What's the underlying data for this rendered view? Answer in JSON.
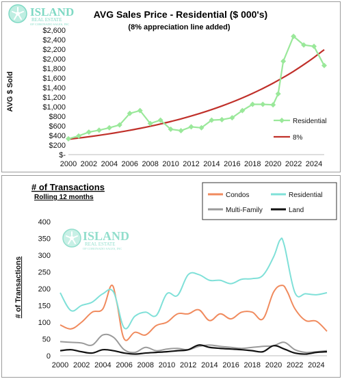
{
  "brand": {
    "name": "ISLAND",
    "subtitle": "REAL ESTATE",
    "tagline": "OF CORONADO SALES, INC",
    "color": "#7fd9c4"
  },
  "chart_data": [
    {
      "type": "line",
      "title": "AVG Sales Price -  Residential ($ 000's)",
      "subtitle": "(8% appreciation line added)",
      "ylabel": "AVG $ Sold",
      "xlabel": "",
      "xlim": [
        2000,
        2025
      ],
      "ylim": [
        0,
        2600
      ],
      "xticks": [
        "2000",
        "2002",
        "2004",
        "2006",
        "2008",
        "2010",
        "2012",
        "2014",
        "2016",
        "2018",
        "2020",
        "2022",
        "2024"
      ],
      "yticks": [
        "$-",
        "$200",
        "$400",
        "$600",
        "$800",
        "$1,000",
        "$1,200",
        "$1,400",
        "$1,600",
        "$1,800",
        "$2,000",
        "$2,200",
        "$2,400",
        "$2,600"
      ],
      "legend_position": "right",
      "series": [
        {
          "name": "Residential",
          "color": "#9ae89a",
          "marker": "diamond",
          "x": [
            2000,
            2001,
            2002,
            2003,
            2004,
            2005,
            2006,
            2007,
            2008,
            2009,
            2010,
            2011,
            2012,
            2013,
            2014,
            2015,
            2016,
            2017,
            2018,
            2019,
            2020,
            2020.5,
            2021,
            2022,
            2023,
            2024,
            2025
          ],
          "y": [
            330,
            390,
            470,
            510,
            560,
            620,
            860,
            920,
            650,
            720,
            530,
            500,
            580,
            560,
            720,
            730,
            770,
            920,
            1050,
            1050,
            1040,
            1270,
            1950,
            2470,
            2290,
            2260,
            1860
          ]
        },
        {
          "name": "8%",
          "color": "#c0302a",
          "marker": "none",
          "x": [
            2000,
            2001,
            2002,
            2003,
            2004,
            2005,
            2006,
            2007,
            2008,
            2009,
            2010,
            2011,
            2012,
            2013,
            2014,
            2015,
            2016,
            2017,
            2018,
            2019,
            2020,
            2021,
            2022,
            2023,
            2024,
            2025
          ],
          "y": [
            320,
            346,
            373,
            403,
            435,
            470,
            508,
            548,
            592,
            640,
            691,
            746,
            806,
            870,
            940,
            1015,
            1096,
            1184,
            1279,
            1381,
            1491,
            1611,
            1739,
            1879,
            2029,
            2191
          ]
        }
      ]
    },
    {
      "type": "line",
      "title": "# of Transactions",
      "subtitle": "Rolling 12 months",
      "ylabel": "# of Transactions",
      "xlabel": "",
      "xlim": [
        2000,
        2025
      ],
      "ylim": [
        0,
        400
      ],
      "xticks": [
        "2000",
        "2002",
        "2004",
        "2006",
        "2008",
        "2010",
        "2012",
        "2014",
        "2016",
        "2018",
        "2020",
        "2022",
        "2024"
      ],
      "yticks": [
        "0",
        "50",
        "100",
        "150",
        "200",
        "250",
        "300",
        "350",
        "400"
      ],
      "legend_position": "top-right",
      "series": [
        {
          "name": "Condos",
          "color": "#f08a5d",
          "x": [
            2000,
            2001,
            2002,
            2003,
            2004,
            2004.8,
            2005.3,
            2006,
            2007,
            2008,
            2009,
            2010,
            2011,
            2012,
            2013,
            2014,
            2015,
            2016,
            2017,
            2018,
            2019,
            2020,
            2020.8,
            2021.3,
            2022,
            2023,
            2024,
            2025
          ],
          "y": [
            92,
            80,
            100,
            130,
            140,
            210,
            160,
            50,
            70,
            62,
            90,
            100,
            125,
            125,
            137,
            105,
            125,
            110,
            130,
            130,
            110,
            190,
            210,
            190,
            140,
            105,
            103,
            73
          ],
          "smooth": true
        },
        {
          "name": "Residential",
          "color": "#7fe0d8",
          "x": [
            2000,
            2001,
            2002,
            2003,
            2004,
            2005,
            2006,
            2007,
            2008,
            2009,
            2010,
            2011,
            2012,
            2013,
            2014,
            2015,
            2016,
            2017,
            2018,
            2019,
            2020,
            2020.6,
            2021,
            2022,
            2023,
            2024,
            2025
          ],
          "y": [
            188,
            135,
            150,
            160,
            185,
            190,
            83,
            118,
            130,
            120,
            185,
            180,
            242,
            242,
            225,
            225,
            215,
            228,
            230,
            240,
            295,
            345,
            330,
            188,
            185,
            182,
            188
          ],
          "smooth": true
        },
        {
          "name": "Multi-Family",
          "color": "#9a9a9a",
          "x": [
            2000,
            2001,
            2002,
            2003,
            2004,
            2005,
            2006,
            2007,
            2008,
            2009,
            2010,
            2011,
            2012,
            2013,
            2014,
            2015,
            2016,
            2017,
            2018,
            2019,
            2020,
            2021,
            2022,
            2023,
            2024,
            2025
          ],
          "y": [
            42,
            40,
            38,
            32,
            62,
            55,
            18,
            10,
            25,
            15,
            20,
            22,
            18,
            28,
            32,
            28,
            25,
            22,
            25,
            28,
            30,
            40,
            18,
            10,
            12,
            15
          ],
          "smooth": true
        },
        {
          "name": "Land",
          "color": "#111111",
          "x": [
            2000,
            2001,
            2002,
            2003,
            2004,
            2005,
            2006,
            2007,
            2008,
            2009,
            2010,
            2011,
            2012,
            2013,
            2014,
            2015,
            2016,
            2017,
            2018,
            2019,
            2020,
            2021,
            2022,
            2023,
            2024,
            2025
          ],
          "y": [
            15,
            18,
            12,
            8,
            18,
            15,
            8,
            5,
            8,
            10,
            12,
            15,
            18,
            32,
            25,
            22,
            20,
            18,
            15,
            12,
            30,
            20,
            8,
            5,
            10,
            12
          ],
          "smooth": true
        }
      ]
    }
  ]
}
